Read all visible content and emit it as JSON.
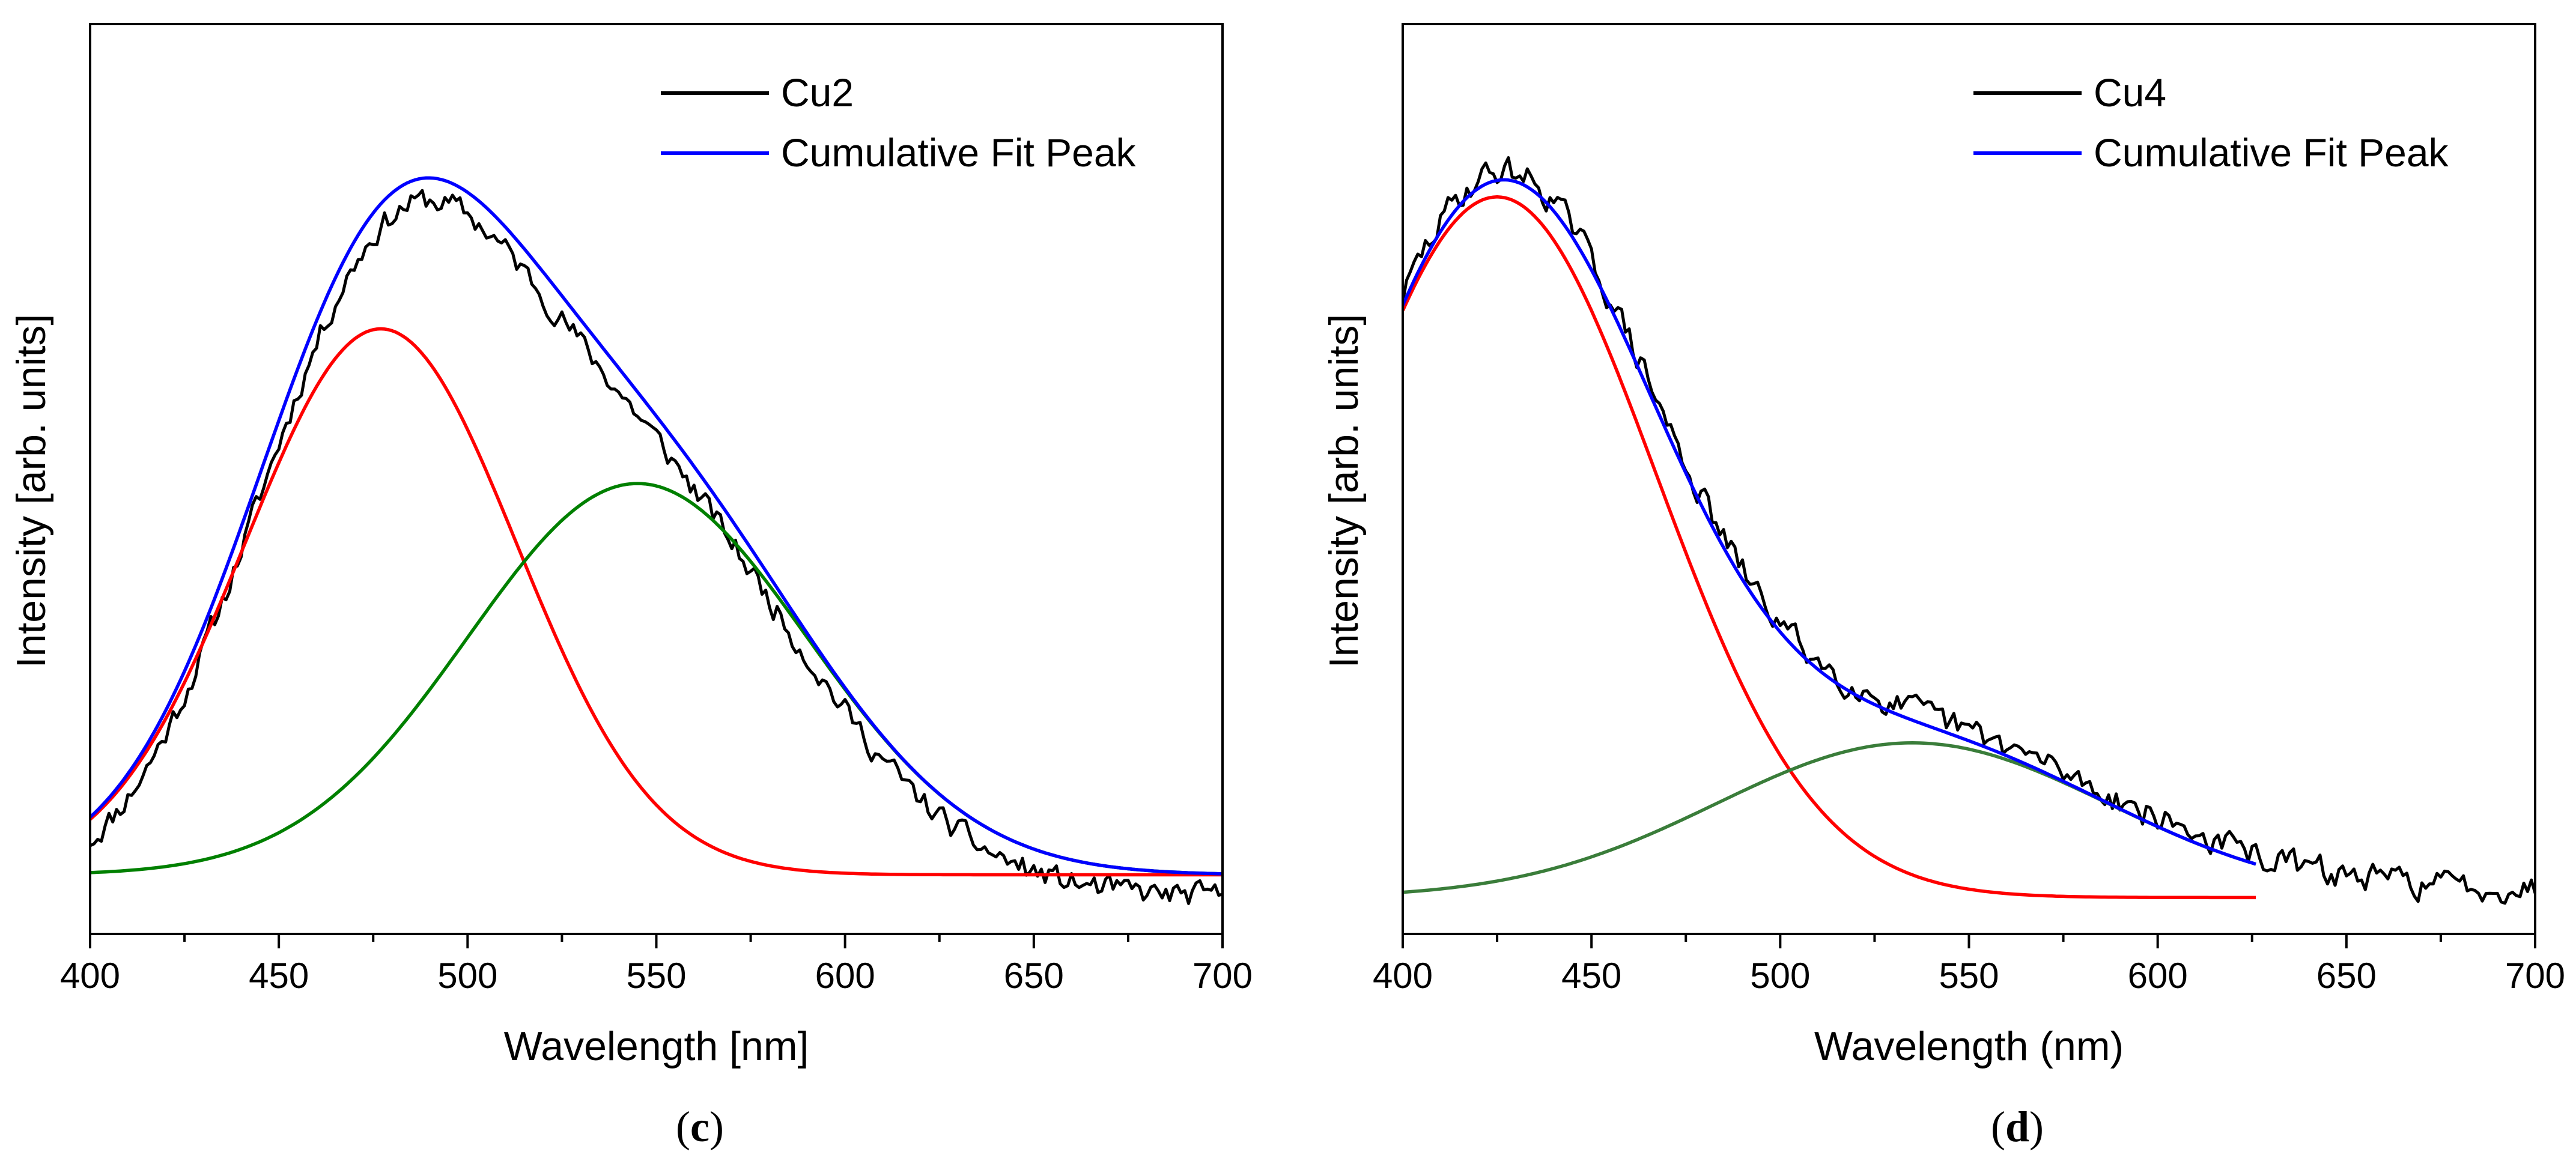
{
  "figure": {
    "panels": [
      {
        "label_open": "(",
        "label_letter": "c",
        "label_close": ")"
      },
      {
        "label_open": "(",
        "label_letter": "d",
        "label_close": ")"
      }
    ]
  },
  "chart_data": [
    {
      "type": "line",
      "panel": "c",
      "xlabel": "Wavelength [nm]",
      "ylabel": "Intensity [arb. units]",
      "xlim": [
        400,
        700
      ],
      "ylim": [
        0,
        1.0
      ],
      "xticks": [
        400,
        450,
        500,
        550,
        600,
        650,
        700
      ],
      "xtick_labels": [
        "400",
        "450",
        "500",
        "550",
        "600",
        "650",
        "700"
      ],
      "legend": {
        "position": "top-right",
        "entries": [
          "Cu2",
          "Cumulative Fit Peak"
        ]
      },
      "series": [
        {
          "name": "Cu2",
          "role": "data",
          "color": "#000000",
          "noise": 0.022,
          "x_start": 400,
          "x_end": 700,
          "step": 1.0,
          "seed": 11,
          "peaks": [
            {
              "center": 477,
              "amplitude": 0.6,
              "sigma": 36
            },
            {
              "center": 545,
              "amplitude": 0.43,
              "sigma": 45
            }
          ],
          "baseline": 0.04
        },
        {
          "name": "Cumulative Fit Peak",
          "role": "fit-sum",
          "color": "#0000ff",
          "x_start": 400,
          "x_end": 700,
          "peaks": [
            {
              "center": 477,
              "amplitude": 0.6,
              "sigma": 36
            },
            {
              "center": 545,
              "amplitude": 0.43,
              "sigma": 45
            }
          ],
          "baseline": 0.065
        },
        {
          "name": "Peak 1",
          "role": "component",
          "color": "#ff0000",
          "x_start": 400,
          "x_end": 700,
          "peaks": [
            {
              "center": 477,
              "amplitude": 0.6,
              "sigma": 36
            }
          ],
          "baseline": 0.065
        },
        {
          "name": "Peak 2",
          "role": "component",
          "color": "#008000",
          "x_start": 400,
          "x_end": 700,
          "peaks": [
            {
              "center": 545,
              "amplitude": 0.43,
              "sigma": 45
            }
          ],
          "baseline": 0.065
        }
      ]
    },
    {
      "type": "line",
      "panel": "d",
      "xlabel": "Wavelength (nm)",
      "ylabel": "Intensity [arb. units]",
      "xlim": [
        400,
        700
      ],
      "ylim": [
        0,
        1.0
      ],
      "xticks": [
        400,
        450,
        500,
        550,
        600,
        650,
        700
      ],
      "xtick_labels": [
        "400",
        "450",
        "500",
        "550",
        "600",
        "650",
        "700"
      ],
      "legend": {
        "position": "top-right",
        "entries": [
          "Cu4",
          "Cumulative Fit Peak"
        ]
      },
      "series": [
        {
          "name": "Cu4",
          "role": "data",
          "color": "#000000",
          "noise": 0.025,
          "x_start": 400,
          "x_end": 700,
          "step": 1.0,
          "seed": 29,
          "peaks": [
            {
              "center": 425,
              "amplitude": 0.77,
              "sigma": 42
            },
            {
              "center": 535,
              "amplitude": 0.17,
              "sigma": 52
            }
          ],
          "baseline": 0.05
        },
        {
          "name": "Cumulative Fit Peak",
          "role": "fit-sum",
          "color": "#0000ff",
          "x_start": 400,
          "x_end": 626,
          "peaks": [
            {
              "center": 425,
              "amplitude": 0.77,
              "sigma": 42
            },
            {
              "center": 535,
              "amplitude": 0.17,
              "sigma": 52
            }
          ],
          "baseline": 0.04
        },
        {
          "name": "Peak 1",
          "role": "component",
          "color": "#ff0000",
          "x_start": 400,
          "x_end": 626,
          "peaks": [
            {
              "center": 425,
              "amplitude": 0.77,
              "sigma": 42
            }
          ],
          "baseline": 0.04
        },
        {
          "name": "Peak 2",
          "role": "component",
          "color": "#3a7d3a",
          "x_start": 400,
          "x_end": 626,
          "peaks": [
            {
              "center": 535,
              "amplitude": 0.17,
              "sigma": 52
            }
          ],
          "baseline": 0.04
        }
      ]
    }
  ]
}
